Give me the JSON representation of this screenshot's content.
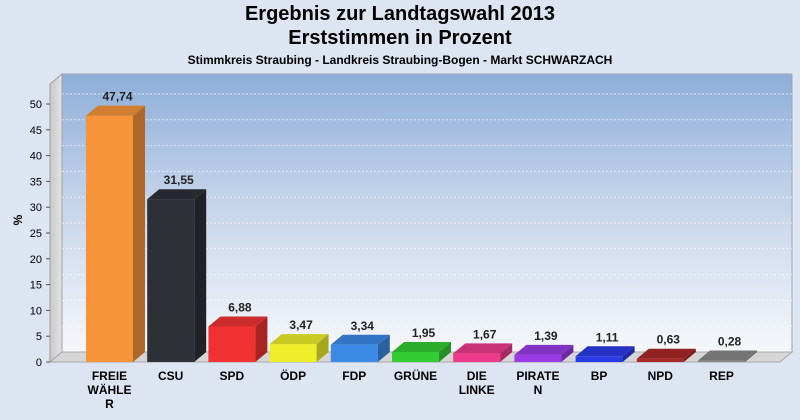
{
  "chart_data": {
    "type": "bar",
    "title": "Ergebnis zur Landtagswahl 2013",
    "subtitle": "Erststimmen in Prozent",
    "subtitle2": "Stimmkreis Straubing - Landkreis Straubing-Bogen - Markt SCHWARZACH",
    "ylabel": "%",
    "ylim": [
      0,
      50
    ],
    "yticks": [
      "0",
      "5",
      "10",
      "15",
      "20",
      "25",
      "30",
      "35",
      "40",
      "45",
      "50"
    ],
    "grid": true,
    "categories": [
      [
        "FREIE",
        "WÄHLE",
        "R"
      ],
      [
        "CSU"
      ],
      [
        "SPD"
      ],
      [
        "ÖDP"
      ],
      [
        "FDP"
      ],
      [
        "GRÜNE"
      ],
      [
        "DIE",
        "LINKE"
      ],
      [
        "PIRATE",
        "N"
      ],
      [
        "BP"
      ],
      [
        "NPD"
      ],
      [
        "REP"
      ]
    ],
    "values": [
      47.74,
      31.55,
      6.88,
      3.47,
      3.34,
      1.95,
      1.67,
      1.39,
      1.11,
      0.63,
      0.28
    ],
    "value_labels": [
      "47,74",
      "31,55",
      "6,88",
      "3,47",
      "3,34",
      "1,95",
      "1,67",
      "1,39",
      "1,11",
      "0,63",
      "0,28"
    ],
    "colors": [
      "#f7943a",
      "#2e3038",
      "#f03232",
      "#eeee2a",
      "#3a8ae6",
      "#33cc33",
      "#ee3b8c",
      "#9a3ce6",
      "#2a3ae6",
      "#aa2828",
      "#888888"
    ]
  }
}
